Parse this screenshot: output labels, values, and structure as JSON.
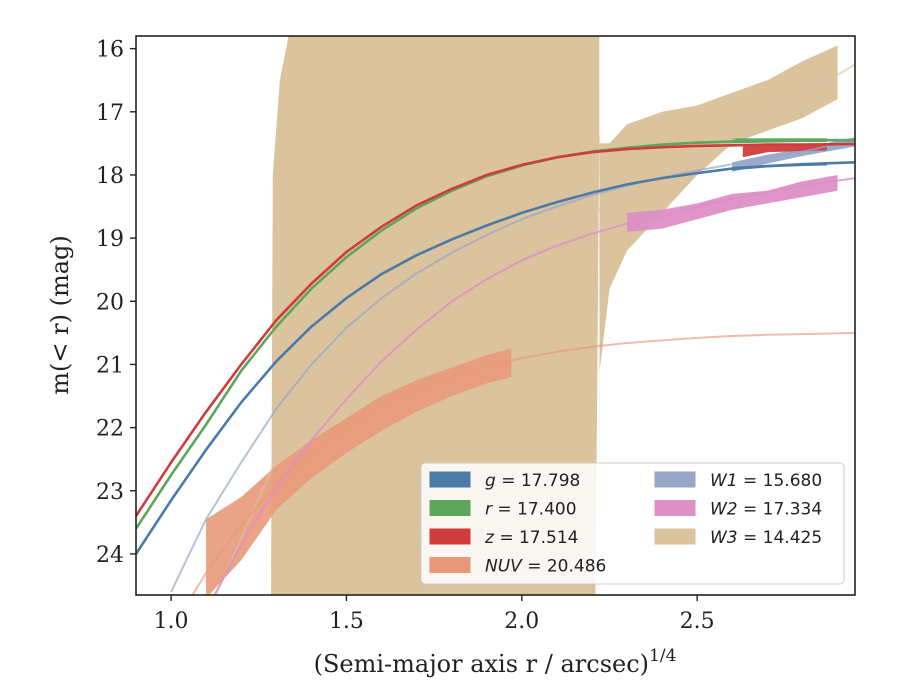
{
  "chart_data": {
    "type": "line",
    "xlabel": "(Semi-major axis r / arcsec)",
    "xlabel_sup": "1/4",
    "ylabel": "m(< r) (mag)",
    "xlim": [
      0.9,
      2.95
    ],
    "ylim": [
      24.65,
      15.8
    ],
    "y_inverted": true,
    "grid": false,
    "legend_placement": "lower-right",
    "x_ticks": [
      1.0,
      1.5,
      2.0,
      2.5
    ],
    "x_tick_labels": [
      "1.0",
      "1.5",
      "2.0",
      "2.5"
    ],
    "y_ticks": [
      16,
      17,
      18,
      19,
      20,
      21,
      22,
      23,
      24
    ],
    "y_tick_labels": [
      "16",
      "17",
      "18",
      "19",
      "20",
      "21",
      "22",
      "23",
      "24"
    ],
    "series": [
      {
        "name": "g = 17.798",
        "name_var": "g",
        "name_val": "= 17.798",
        "color": "#4c7ba8",
        "model": {
          "x": [
            0.9,
            1.0,
            1.1,
            1.2,
            1.3,
            1.4,
            1.5,
            1.6,
            1.7,
            1.8,
            1.9,
            2.0,
            2.1,
            2.2,
            2.3,
            2.4,
            2.5,
            2.6,
            2.7,
            2.8,
            2.95
          ],
          "y": [
            24.0,
            23.15,
            22.35,
            21.6,
            20.95,
            20.4,
            19.95,
            19.57,
            19.27,
            19.02,
            18.8,
            18.6,
            18.43,
            18.28,
            18.15,
            18.05,
            17.97,
            17.9,
            17.86,
            17.83,
            17.8
          ]
        },
        "obs": {
          "x": [
            2.6,
            2.7,
            2.8,
            2.87
          ],
          "y_low": [
            17.87,
            17.84,
            17.83,
            17.82
          ],
          "y_high": [
            17.93,
            17.88,
            17.86,
            17.85
          ]
        }
      },
      {
        "name": "r = 17.400",
        "name_var": "r",
        "name_val": "= 17.400",
        "color": "#5ea55e",
        "model": {
          "x": [
            0.9,
            1.0,
            1.1,
            1.2,
            1.3,
            1.4,
            1.5,
            1.6,
            1.7,
            1.8,
            1.9,
            2.0,
            2.1,
            2.2,
            2.3,
            2.4,
            2.5,
            2.6,
            2.7,
            2.8,
            2.95
          ],
          "y": [
            23.6,
            22.75,
            21.95,
            21.1,
            20.4,
            19.8,
            19.3,
            18.88,
            18.53,
            18.25,
            18.02,
            17.85,
            17.72,
            17.63,
            17.57,
            17.52,
            17.49,
            17.47,
            17.46,
            17.45,
            17.45
          ]
        },
        "obs": {
          "x": [
            2.6,
            2.7,
            2.8,
            2.87
          ],
          "y_low": [
            17.42,
            17.42,
            17.42,
            17.42
          ],
          "y_high": [
            17.5,
            17.49,
            17.48,
            17.48
          ]
        }
      },
      {
        "name": "z = 17.514",
        "name_var": "z",
        "name_val": "= 17.514",
        "color": "#d03c3c",
        "model": {
          "x": [
            0.9,
            1.0,
            1.1,
            1.2,
            1.3,
            1.4,
            1.5,
            1.6,
            1.7,
            1.8,
            1.9,
            2.0,
            2.1,
            2.2,
            2.3,
            2.4,
            2.5,
            2.6,
            2.7,
            2.8,
            2.95
          ],
          "y": [
            23.4,
            22.55,
            21.75,
            21.0,
            20.3,
            19.72,
            19.22,
            18.82,
            18.48,
            18.22,
            18.0,
            17.84,
            17.72,
            17.64,
            17.59,
            17.56,
            17.54,
            17.53,
            17.52,
            17.52,
            17.51
          ]
        },
        "obs": {
          "x": [
            2.63,
            2.7,
            2.8,
            2.87
          ],
          "y_low": [
            17.55,
            17.52,
            17.52,
            17.52
          ],
          "y_high": [
            17.72,
            17.64,
            17.62,
            17.61
          ]
        }
      },
      {
        "name": "NUV = 20.486",
        "name_var": "NUV",
        "name_val": "= 20.486",
        "color": "#e8997a",
        "model": {
          "x": [
            1.0,
            1.1,
            1.2,
            1.3,
            1.4,
            1.5,
            1.6,
            1.7,
            1.8,
            1.9,
            2.0,
            2.1,
            2.2,
            2.3,
            2.4,
            2.5,
            2.6,
            2.7,
            2.8,
            2.95
          ],
          "y": [
            25.2,
            24.3,
            23.55,
            22.9,
            22.4,
            22.0,
            21.65,
            21.4,
            21.2,
            21.03,
            20.9,
            20.8,
            20.72,
            20.66,
            20.62,
            20.58,
            20.55,
            20.53,
            20.52,
            20.5
          ]
        },
        "obs": {
          "x": [
            1.1,
            1.2,
            1.3,
            1.4,
            1.5,
            1.6,
            1.7,
            1.8,
            1.9,
            1.97
          ],
          "y_low": [
            23.45,
            23.1,
            22.6,
            22.2,
            21.85,
            21.5,
            21.25,
            21.05,
            20.85,
            20.75
          ],
          "y_high": [
            24.7,
            24.1,
            23.3,
            22.8,
            22.4,
            22.05,
            21.75,
            21.5,
            21.3,
            21.2
          ]
        }
      },
      {
        "name": "W1 = 15.680",
        "name_var": "W1",
        "name_val": "= 15.680",
        "color": "#98a6c8",
        "model": {
          "x": [
            1.0,
            1.1,
            1.2,
            1.3,
            1.4,
            1.5,
            1.6,
            1.7,
            1.8,
            1.9,
            2.0,
            2.1,
            2.2,
            2.3,
            2.4,
            2.5,
            2.6,
            2.7,
            2.8,
            2.95
          ],
          "y": [
            24.6,
            23.45,
            22.55,
            21.7,
            21.0,
            20.42,
            19.95,
            19.56,
            19.23,
            18.95,
            18.7,
            18.5,
            18.32,
            18.17,
            18.04,
            17.93,
            17.83,
            17.73,
            17.63,
            17.45
          ]
        },
        "obs": {
          "x": [
            2.6,
            2.7,
            2.8,
            2.95
          ],
          "y_low": [
            17.8,
            17.68,
            17.58,
            17.4
          ],
          "y_high": [
            17.95,
            17.82,
            17.7,
            17.55
          ]
        }
      },
      {
        "name": "W2 = 17.334",
        "name_var": "W2",
        "name_val": "= 17.334",
        "color": "#dd8fc6",
        "model": {
          "x": [
            1.0,
            1.1,
            1.2,
            1.3,
            1.4,
            1.5,
            1.6,
            1.7,
            1.8,
            1.9,
            2.0,
            2.1,
            2.2,
            2.3,
            2.4,
            2.5,
            2.6,
            2.7,
            2.8,
            2.95
          ],
          "y": [
            26.2,
            24.9,
            23.85,
            22.95,
            22.2,
            21.55,
            20.95,
            20.45,
            20.0,
            19.65,
            19.35,
            19.12,
            18.93,
            18.77,
            18.65,
            18.5,
            18.38,
            18.27,
            18.17,
            18.05
          ]
        },
        "obs": {
          "x": [
            2.3,
            2.4,
            2.5,
            2.6,
            2.7,
            2.8,
            2.9
          ],
          "y_low": [
            18.6,
            18.55,
            18.45,
            18.3,
            18.25,
            18.1,
            18.0
          ],
          "y_high": [
            18.9,
            18.85,
            18.7,
            18.55,
            18.45,
            18.35,
            18.25
          ]
        }
      },
      {
        "name": "W3 = 14.425",
        "name_var": "W3",
        "name_val": "= 14.425",
        "color": "#dbc39e",
        "model": {
          "x": [
            1.1,
            1.3,
            1.5,
            1.7,
            1.9,
            2.0,
            2.1,
            2.2,
            2.3,
            2.4,
            2.5,
            2.6,
            2.7,
            2.8,
            2.95
          ],
          "y": [
            25.0,
            22.5,
            21.0,
            20.0,
            19.3,
            19.0,
            18.8,
            18.6,
            18.35,
            18.05,
            17.75,
            17.45,
            17.1,
            16.75,
            16.25
          ]
        },
        "obs": {
          "x": [
            1.285,
            1.29,
            1.31,
            1.335,
            1.5,
            1.9,
            2.05,
            2.21,
            2.221,
            2.222,
            2.222,
            2.25,
            2.3,
            2.4,
            2.5,
            2.6,
            2.7,
            2.8,
            2.9
          ],
          "y_low": [
            24.65,
            18.0,
            16.5,
            15.8,
            15.8,
            15.8,
            15.8,
            15.8,
            15.8,
            24.65,
            21.1,
            19.8,
            19.2,
            18.6,
            18.0,
            17.5,
            17.3,
            17.1,
            16.8
          ],
          "y_high": [
            24.65,
            24.65,
            24.65,
            24.65,
            24.65,
            24.65,
            24.65,
            24.65,
            17.4,
            17.4,
            17.5,
            17.5,
            17.2,
            17.0,
            16.9,
            16.7,
            16.5,
            16.2,
            15.95
          ]
        }
      }
    ]
  }
}
